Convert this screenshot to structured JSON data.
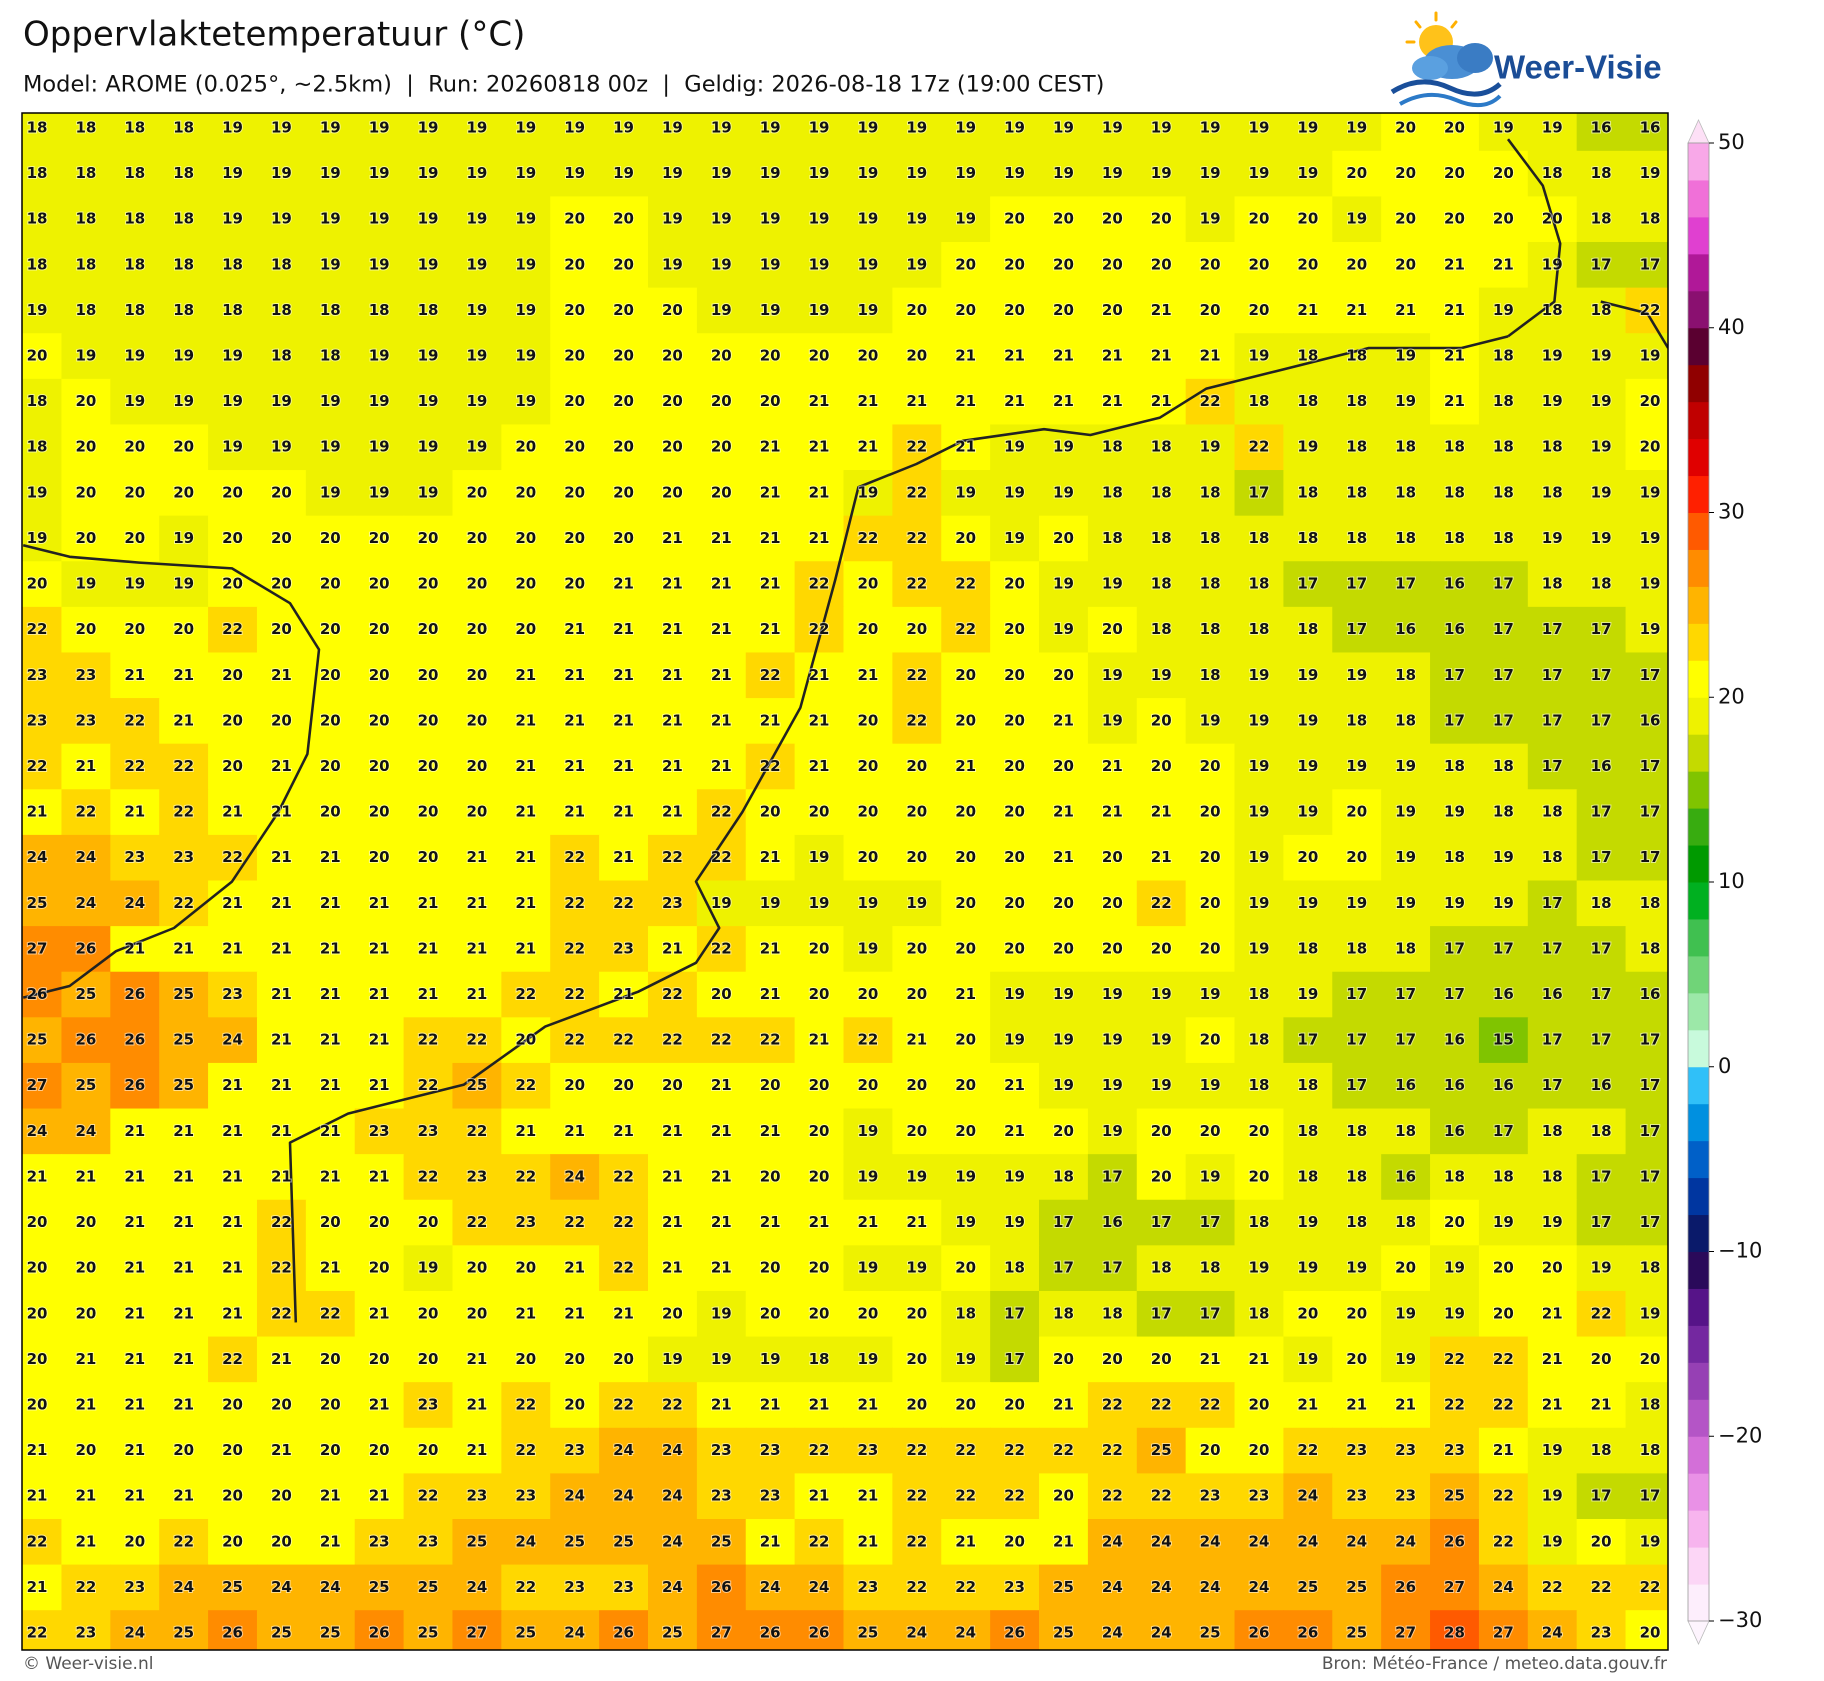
{
  "header": {
    "title": "Oppervlaktetemperatuur (°C)",
    "subtitle": "Model: AROME (0.025°, ~2.5km)  |  Run: 20260818 00z  |  Geldig: 2026-08-18 17z (19:00 CEST)"
  },
  "logo": {
    "text": "Weer-Visie"
  },
  "map": {
    "rows": [
      [
        18,
        18,
        18,
        18,
        19,
        19,
        19,
        19,
        19,
        19,
        19,
        19,
        19,
        19,
        19,
        19,
        19,
        19,
        19,
        19,
        19,
        19,
        19,
        19,
        19,
        19,
        19,
        19,
        20,
        20,
        19,
        19,
        16,
        16
      ],
      [
        18,
        18,
        18,
        18,
        19,
        19,
        19,
        19,
        19,
        19,
        19,
        19,
        19,
        19,
        19,
        19,
        19,
        19,
        19,
        19,
        19,
        19,
        19,
        19,
        19,
        19,
        19,
        20,
        20,
        20,
        20,
        18,
        18,
        19
      ],
      [
        18,
        18,
        18,
        18,
        19,
        19,
        19,
        19,
        19,
        19,
        19,
        20,
        20,
        19,
        19,
        19,
        19,
        19,
        19,
        19,
        20,
        20,
        20,
        20,
        19,
        20,
        20,
        19,
        20,
        20,
        20,
        20,
        18,
        18
      ],
      [
        18,
        18,
        18,
        18,
        18,
        18,
        19,
        19,
        19,
        19,
        19,
        20,
        20,
        19,
        19,
        19,
        19,
        19,
        19,
        20,
        20,
        20,
        20,
        20,
        20,
        20,
        20,
        20,
        20,
        21,
        21,
        19,
        17,
        17
      ],
      [
        19,
        18,
        18,
        18,
        18,
        18,
        18,
        18,
        18,
        19,
        19,
        20,
        20,
        20,
        19,
        19,
        19,
        19,
        20,
        20,
        20,
        20,
        20,
        21,
        20,
        20,
        21,
        21,
        21,
        21,
        19,
        18,
        18,
        22
      ],
      [
        20,
        19,
        19,
        19,
        19,
        18,
        18,
        19,
        19,
        19,
        19,
        20,
        20,
        20,
        20,
        20,
        20,
        20,
        20,
        21,
        21,
        21,
        21,
        21,
        21,
        19,
        18,
        18,
        19,
        21,
        18,
        19,
        19,
        19
      ],
      [
        18,
        20,
        19,
        19,
        19,
        19,
        19,
        19,
        19,
        19,
        19,
        20,
        20,
        20,
        20,
        20,
        21,
        21,
        21,
        21,
        21,
        21,
        21,
        21,
        22,
        18,
        18,
        18,
        19,
        21,
        18,
        19,
        19,
        20
      ],
      [
        18,
        20,
        20,
        20,
        19,
        19,
        19,
        19,
        19,
        19,
        20,
        20,
        20,
        20,
        20,
        21,
        21,
        21,
        22,
        21,
        19,
        19,
        18,
        18,
        19,
        22,
        19,
        18,
        18,
        18,
        18,
        18,
        19,
        20
      ],
      [
        19,
        20,
        20,
        20,
        20,
        20,
        19,
        19,
        19,
        20,
        20,
        20,
        20,
        20,
        20,
        21,
        21,
        19,
        22,
        19,
        19,
        19,
        18,
        18,
        18,
        17,
        18,
        18,
        18,
        18,
        18,
        18,
        19,
        19
      ],
      [
        19,
        20,
        20,
        19,
        20,
        20,
        20,
        20,
        20,
        20,
        20,
        20,
        20,
        21,
        21,
        21,
        21,
        22,
        22,
        20,
        19,
        20,
        18,
        18,
        18,
        18,
        18,
        18,
        18,
        18,
        18,
        19,
        19,
        19
      ],
      [
        20,
        19,
        19,
        19,
        20,
        20,
        20,
        20,
        20,
        20,
        20,
        20,
        21,
        21,
        21,
        21,
        22,
        20,
        22,
        22,
        20,
        19,
        19,
        18,
        18,
        18,
        17,
        17,
        17,
        16,
        17,
        18,
        18,
        19
      ],
      [
        22,
        20,
        20,
        20,
        22,
        20,
        20,
        20,
        20,
        20,
        20,
        21,
        21,
        21,
        21,
        21,
        22,
        20,
        20,
        22,
        20,
        19,
        20,
        18,
        18,
        18,
        18,
        17,
        16,
        16,
        17,
        17,
        17,
        19
      ],
      [
        23,
        23,
        21,
        21,
        20,
        21,
        20,
        20,
        20,
        20,
        21,
        21,
        21,
        21,
        21,
        22,
        21,
        21,
        22,
        20,
        20,
        20,
        19,
        19,
        18,
        19,
        19,
        19,
        18,
        17,
        17,
        17,
        17,
        17
      ],
      [
        23,
        23,
        22,
        21,
        20,
        20,
        20,
        20,
        20,
        20,
        21,
        21,
        21,
        21,
        21,
        21,
        21,
        20,
        22,
        20,
        20,
        21,
        19,
        20,
        19,
        19,
        19,
        18,
        18,
        17,
        17,
        17,
        17,
        16
      ],
      [
        22,
        21,
        22,
        22,
        20,
        21,
        20,
        20,
        20,
        20,
        21,
        21,
        21,
        21,
        21,
        22,
        21,
        20,
        20,
        21,
        20,
        20,
        21,
        20,
        20,
        19,
        19,
        19,
        19,
        18,
        18,
        17,
        16,
        17
      ],
      [
        21,
        22,
        21,
        22,
        21,
        21,
        20,
        20,
        20,
        20,
        21,
        21,
        21,
        21,
        22,
        20,
        20,
        20,
        20,
        20,
        20,
        21,
        21,
        21,
        20,
        19,
        19,
        20,
        19,
        19,
        18,
        18,
        17,
        17
      ],
      [
        24,
        24,
        23,
        23,
        22,
        21,
        21,
        20,
        20,
        21,
        21,
        22,
        21,
        22,
        22,
        21,
        19,
        20,
        20,
        20,
        20,
        21,
        20,
        21,
        20,
        19,
        20,
        20,
        19,
        18,
        19,
        18,
        17,
        17
      ],
      [
        25,
        24,
        24,
        22,
        21,
        21,
        21,
        21,
        21,
        21,
        21,
        22,
        22,
        23,
        19,
        19,
        19,
        19,
        19,
        20,
        20,
        20,
        20,
        22,
        20,
        19,
        19,
        19,
        19,
        19,
        19,
        17,
        18,
        18
      ],
      [
        27,
        26,
        21,
        21,
        21,
        21,
        21,
        21,
        21,
        21,
        21,
        22,
        23,
        21,
        22,
        21,
        20,
        19,
        20,
        20,
        20,
        20,
        20,
        20,
        20,
        19,
        18,
        18,
        18,
        17,
        17,
        17,
        17,
        18
      ],
      [
        26,
        25,
        26,
        25,
        23,
        21,
        21,
        21,
        21,
        21,
        22,
        22,
        21,
        22,
        20,
        21,
        20,
        20,
        20,
        21,
        19,
        19,
        19,
        19,
        19,
        18,
        19,
        17,
        17,
        17,
        16,
        16,
        17,
        16
      ],
      [
        25,
        26,
        26,
        25,
        24,
        21,
        21,
        21,
        22,
        22,
        20,
        22,
        22,
        22,
        22,
        22,
        21,
        22,
        21,
        20,
        19,
        19,
        19,
        19,
        20,
        18,
        17,
        17,
        17,
        16,
        15,
        17,
        17,
        17
      ],
      [
        27,
        25,
        26,
        25,
        21,
        21,
        21,
        21,
        22,
        25,
        22,
        20,
        20,
        20,
        21,
        20,
        20,
        20,
        20,
        20,
        21,
        19,
        19,
        19,
        19,
        18,
        18,
        17,
        16,
        16,
        16,
        17,
        16,
        17
      ],
      [
        24,
        24,
        21,
        21,
        21,
        21,
        21,
        23,
        23,
        22,
        21,
        21,
        21,
        21,
        21,
        21,
        20,
        19,
        20,
        20,
        21,
        20,
        19,
        20,
        20,
        20,
        18,
        18,
        18,
        16,
        17,
        18,
        18,
        17
      ],
      [
        21,
        21,
        21,
        21,
        21,
        21,
        21,
        21,
        22,
        23,
        22,
        24,
        22,
        21,
        21,
        20,
        20,
        19,
        19,
        19,
        19,
        18,
        17,
        20,
        19,
        20,
        18,
        18,
        16,
        18,
        18,
        18,
        17,
        17
      ],
      [
        20,
        20,
        21,
        21,
        21,
        22,
        20,
        20,
        20,
        22,
        23,
        22,
        22,
        21,
        21,
        21,
        21,
        21,
        21,
        19,
        19,
        17,
        16,
        17,
        17,
        18,
        19,
        18,
        18,
        20,
        19,
        19,
        17,
        17
      ],
      [
        20,
        20,
        21,
        21,
        21,
        22,
        21,
        20,
        19,
        20,
        20,
        21,
        22,
        21,
        21,
        20,
        20,
        19,
        19,
        20,
        18,
        17,
        17,
        18,
        18,
        19,
        19,
        19,
        20,
        19,
        20,
        20,
        19,
        18
      ],
      [
        20,
        20,
        21,
        21,
        21,
        22,
        22,
        21,
        20,
        20,
        21,
        21,
        21,
        20,
        19,
        20,
        20,
        20,
        20,
        18,
        17,
        18,
        18,
        17,
        17,
        18,
        20,
        20,
        19,
        19,
        20,
        21,
        22,
        19
      ],
      [
        20,
        21,
        21,
        21,
        22,
        21,
        20,
        20,
        20,
        21,
        20,
        20,
        20,
        19,
        19,
        19,
        18,
        19,
        20,
        19,
        17,
        20,
        20,
        20,
        21,
        21,
        19,
        20,
        19,
        22,
        22,
        21,
        20,
        20
      ],
      [
        20,
        21,
        21,
        21,
        20,
        20,
        20,
        21,
        23,
        21,
        22,
        20,
        22,
        22,
        21,
        21,
        21,
        21,
        20,
        20,
        20,
        21,
        22,
        22,
        22,
        20,
        21,
        21,
        21,
        22,
        22,
        21,
        21,
        18
      ],
      [
        21,
        20,
        21,
        20,
        20,
        21,
        20,
        20,
        20,
        21,
        22,
        23,
        24,
        24,
        23,
        23,
        22,
        23,
        22,
        22,
        22,
        22,
        22,
        25,
        20,
        20,
        22,
        23,
        23,
        23,
        21,
        19,
        18,
        18
      ],
      [
        21,
        21,
        21,
        21,
        20,
        20,
        21,
        21,
        22,
        23,
        23,
        24,
        24,
        24,
        23,
        23,
        21,
        21,
        22,
        22,
        22,
        20,
        22,
        22,
        23,
        23,
        24,
        23,
        23,
        25,
        22,
        19,
        17,
        17
      ],
      [
        22,
        21,
        20,
        22,
        20,
        20,
        21,
        23,
        23,
        25,
        24,
        25,
        25,
        24,
        25,
        21,
        22,
        21,
        22,
        21,
        20,
        21,
        24,
        24,
        24,
        24,
        24,
        24,
        24,
        26,
        22,
        19,
        20,
        19
      ],
      [
        21,
        22,
        23,
        24,
        25,
        24,
        24,
        25,
        25,
        24,
        22,
        23,
        23,
        24,
        26,
        24,
        24,
        23,
        22,
        22,
        23,
        25,
        24,
        24,
        24,
        24,
        25,
        25,
        26,
        27,
        24,
        22,
        22,
        22
      ],
      [
        22,
        23,
        24,
        25,
        26,
        25,
        25,
        26,
        25,
        27,
        25,
        24,
        26,
        25,
        27,
        26,
        26,
        25,
        24,
        24,
        26,
        25,
        24,
        24,
        25,
        26,
        26,
        25,
        27,
        28,
        27,
        24,
        23,
        20
      ]
    ]
  },
  "colorbar": {
    "lim": [
      -30,
      50
    ],
    "colors": [
      "#fdeefc",
      "#fcd6f6",
      "#f7b4ee",
      "#e991e6",
      "#d36fd8",
      "#b455c6",
      "#9640b4",
      "#7428a0",
      "#561488",
      "#2a0a5a",
      "#0a1a6a",
      "#0036a0",
      "#0060c8",
      "#0090e0",
      "#30c0f8",
      "#c8fadc",
      "#9ce8a8",
      "#70d478",
      "#40c050",
      "#00b020",
      "#009a00",
      "#38ac10",
      "#80c400",
      "#c4da00",
      "#eef200",
      "#ffff00",
      "#ffd800",
      "#ffb400",
      "#ff8c00",
      "#ff5a00",
      "#ff2000",
      "#e00000",
      "#c00000",
      "#900000",
      "#5a0030",
      "#8a1070",
      "#b01898",
      "#e040d0",
      "#f070d8",
      "#f8a8e8"
    ],
    "ticks": [
      50,
      40,
      30,
      20,
      10,
      0,
      {
        "value": -10,
        "label": "−10"
      },
      {
        "value": -20,
        "label": "−20"
      },
      {
        "value": -30,
        "label": "−30"
      }
    ]
  },
  "footer": {
    "left": "© Weer-visie.nl",
    "right": "Bron: Météo-France / meteo.data.gouv.fr"
  }
}
